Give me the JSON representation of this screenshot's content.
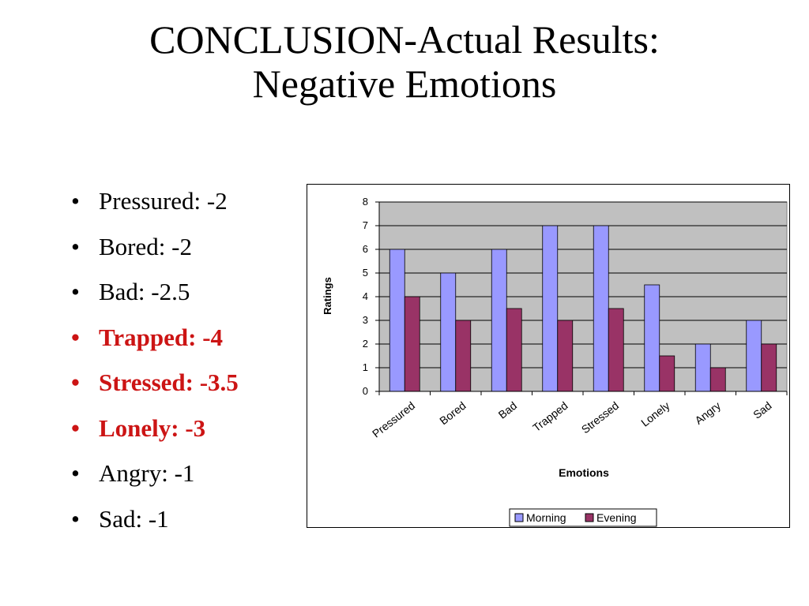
{
  "slide": {
    "title_line1": "CONCLUSION-Actual Results:",
    "title_line2": "Negative Emotions",
    "bullets": [
      {
        "text": "Pressured: -2",
        "highlight": false
      },
      {
        "text": "Bored: -2",
        "highlight": false
      },
      {
        "text": "Bad: -2.5",
        "highlight": false
      },
      {
        "text": "Trapped: -4",
        "highlight": true
      },
      {
        "text": "Stressed: -3.5",
        "highlight": true
      },
      {
        "text": "Lonely: -3",
        "highlight": true
      },
      {
        "text": "Angry: -1",
        "highlight": false
      },
      {
        "text": "Sad: -1",
        "highlight": false
      }
    ],
    "bullet_glyph": "•",
    "highlight_color": "#cc1414"
  },
  "chart_data": {
    "type": "bar",
    "categories": [
      "Pressured",
      "Bored",
      "Bad",
      "Trapped",
      "Stressed",
      "Lonely",
      "Angry",
      "Sad"
    ],
    "series": [
      {
        "name": "Morning",
        "values": [
          6,
          5,
          6,
          7,
          7,
          4.5,
          2,
          3
        ],
        "color": "#9999ff"
      },
      {
        "name": "Evening",
        "values": [
          4,
          3,
          3.5,
          3,
          3.5,
          1.5,
          1,
          2
        ],
        "color": "#993366"
      }
    ],
    "xlabel": "Emotions",
    "ylabel": "Ratings",
    "ylim": [
      0,
      8
    ],
    "yticks": [
      0,
      1,
      2,
      3,
      4,
      5,
      6,
      7,
      8
    ],
    "grid": true,
    "plot_background": "#c0c0c0",
    "legend_position": "bottom"
  }
}
